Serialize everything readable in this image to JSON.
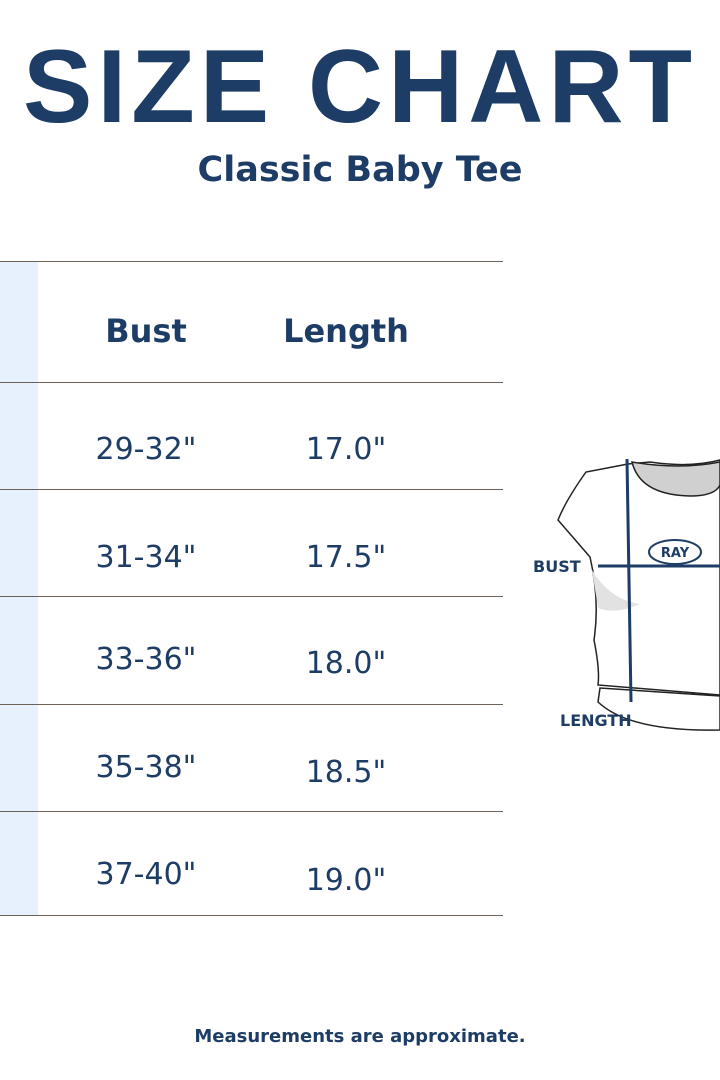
{
  "title": "SIZE CHART",
  "subtitle": "Classic Baby Tee",
  "table": {
    "headers": [
      "Bust",
      "Length"
    ],
    "rows": [
      {
        "bust": "29-32\"",
        "length": "17.0\""
      },
      {
        "bust": "31-34\"",
        "length": "17.5\""
      },
      {
        "bust": "33-36\"",
        "length": "18.0\""
      },
      {
        "bust": "35-38\"",
        "length": "18.5\""
      },
      {
        "bust": "37-40\"",
        "length": "19.0\""
      }
    ]
  },
  "diagram": {
    "bust_label": "BUST",
    "length_label": "LENGTH",
    "logo_text": "RAY"
  },
  "footer": "Measurements are approximate.",
  "colors": {
    "navy": "#1e3d66",
    "strip": "#e6f1fd"
  }
}
